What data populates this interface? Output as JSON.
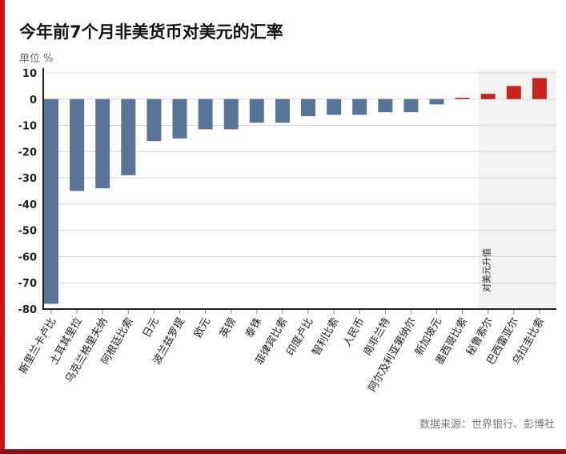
{
  "chart_data": {
    "type": "bar",
    "title": "今年前7个月非美货币对美元的汇率",
    "ylabel": "单位 %",
    "xlabel": "",
    "ylim": [
      -80,
      10
    ],
    "yticks": [
      10,
      0,
      -10,
      -20,
      -30,
      -40,
      -50,
      -60,
      -70,
      -80
    ],
    "grid": true,
    "categories": [
      "斯里兰卡卢比",
      "土耳其里拉",
      "乌克兰格里夫纳",
      "阿根廷比索",
      "日元",
      "波兰兹罗提",
      "欧元",
      "英镑",
      "泰铢",
      "菲律宾比索",
      "印度卢比",
      "智利比索",
      "人民币",
      "南非兰特",
      "阿尔及利亚第纳尔",
      "新加坡元",
      "墨西哥比索",
      "秘鲁索尔",
      "巴西雷亚尔",
      "乌拉圭比索"
    ],
    "values": [
      -78,
      -35,
      -34,
      -29,
      -16,
      -15,
      -11.5,
      -11.5,
      -9,
      -9,
      -6.5,
      -6,
      -6,
      -5,
      -5,
      -2,
      0.5,
      2,
      5,
      8
    ],
    "colors": {
      "negative": "#587497",
      "positive": "#c9231d",
      "highlight_bg": "#f2f2f2"
    },
    "annotation": "对美元升值",
    "source": "数据来源：世界银行、彭博社"
  }
}
